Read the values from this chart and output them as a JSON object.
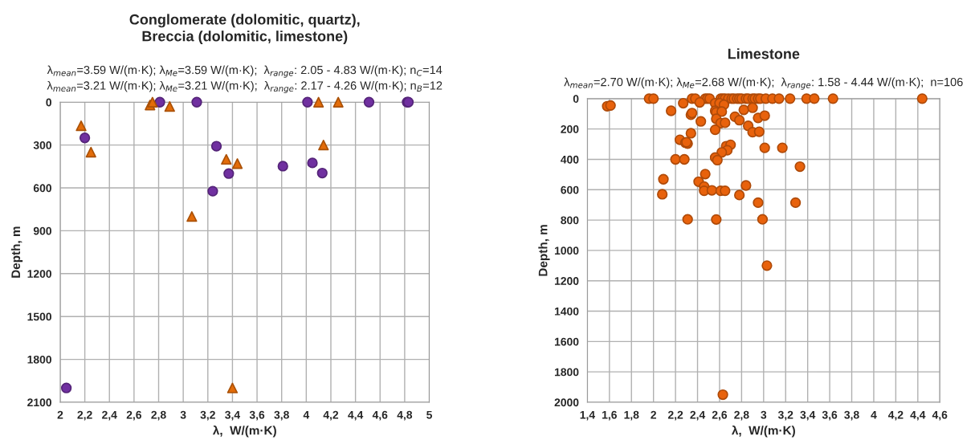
{
  "chart_data": [
    {
      "type": "scatter",
      "title": "Conglomerate (dolomitic, quartz),\nBreccia (dolomitic, limestone)",
      "subtitle": "λ$_{mean}$=3.59 W/(m·K); λ$_{Me}$=3.59 W/(m·K);  λ$_{range}$: 2.05 - 4.83 W/(m·K); n$_{C}$=14\nλ$_{mean}$=3.21 W/(m·K); λ$_{Me}$=3.21 W/(m·K);  λ$_{range}$: 2.17 - 4.26 W/(m·K); n$_{B}$=12",
      "xlabel": "λ,  W/(m·K)",
      "ylabel": "Depth, m",
      "xlim": [
        2,
        5
      ],
      "xticks": [
        2,
        {
          "value": 2.2,
          "label": "2,2"
        },
        {
          "value": 2.4,
          "label": "2,4"
        },
        {
          "value": 2.6,
          "label": "2,6"
        },
        {
          "value": 2.8,
          "label": "2,8"
        },
        3,
        {
          "value": 3.2,
          "label": "3,2"
        },
        {
          "value": 3.4,
          "label": "3,4"
        },
        {
          "value": 3.6,
          "label": "3,6"
        },
        {
          "value": 3.8,
          "label": "3,8"
        },
        4,
        {
          "value": 4.2,
          "label": "4,2"
        },
        {
          "value": 4.4,
          "label": "4,4"
        },
        {
          "value": 4.6,
          "label": "4,6"
        },
        {
          "value": 4.8,
          "label": "4,8"
        },
        5
      ],
      "ylim": [
        2100,
        0
      ],
      "yticks": [
        0,
        300,
        600,
        900,
        1200,
        1500,
        1800,
        2100
      ],
      "grid": true,
      "series": [
        {
          "marker": "circle",
          "color": "#7030a0",
          "x": [
            2.2,
            2.81,
            3.11,
            3.27,
            3.37,
            3.24,
            3.81,
            4.01,
            4.05,
            4.13,
            4.51,
            4.82,
            4.83,
            2.05
          ],
          "values": [
            250,
            0,
            0,
            308,
            500,
            623,
            448,
            0,
            425,
            496,
            0,
            0,
            0,
            2000
          ]
        },
        {
          "marker": "triangle",
          "color": "#e36c09",
          "x": [
            2.17,
            2.25,
            2.73,
            2.75,
            2.89,
            3.07,
            3.35,
            3.44,
            4.1,
            4.14,
            4.26,
            3.4
          ],
          "values": [
            165,
            350,
            20,
            0,
            30,
            800,
            400,
            430,
            0,
            300,
            0,
            2000
          ]
        }
      ]
    },
    {
      "type": "scatter",
      "title": "Limestone",
      "subtitle": "λ$_{mean}$=2.70 W/(m·K); λ$_{Me}$=2.68 W/(m·K);  λ$_{range}$: 1.58 - 4.44 W/(m·K);  n=106",
      "xlabel": "λ,  W/(m·K)",
      "ylabel": "Depth, m",
      "xlim": [
        1.4,
        4.6
      ],
      "xticks": [
        {
          "value": 1.4,
          "label": "1,4"
        },
        {
          "value": 1.6,
          "label": "1,6"
        },
        {
          "value": 1.8,
          "label": "1,8"
        },
        2,
        {
          "value": 2.2,
          "label": "2,2"
        },
        {
          "value": 2.4,
          "label": "2,4"
        },
        {
          "value": 2.6,
          "label": "2,6"
        },
        {
          "value": 2.8,
          "label": "2,8"
        },
        3,
        {
          "value": 3.2,
          "label": "3,2"
        },
        {
          "value": 3.4,
          "label": "3,4"
        },
        {
          "value": 3.6,
          "label": "3,6"
        },
        {
          "value": 3.8,
          "label": "3,8"
        },
        4,
        {
          "value": 4.2,
          "label": "4,2"
        },
        {
          "value": 4.4,
          "label": "4,4"
        },
        {
          "value": 4.6,
          "label": "4,6"
        }
      ],
      "ylim": [
        2000,
        0
      ],
      "yticks": [
        0,
        200,
        400,
        600,
        800,
        1000,
        1200,
        1400,
        1600,
        1800,
        2000
      ],
      "grid": true,
      "series": [
        {
          "marker": "circle",
          "color": "#e8620c",
          "x": [
            1.96,
            2.0,
            2.35,
            2.38,
            2.47,
            2.49,
            2.51,
            2.61,
            2.63,
            2.65,
            2.68,
            2.71,
            2.73,
            2.76,
            2.78,
            2.8,
            2.84,
            2.86,
            2.9,
            2.92,
            2.95,
            2.97,
            3.02,
            3.08,
            3.14,
            3.24,
            3.39,
            3.46,
            3.63,
            4.44,
            1.58,
            1.61,
            2.16,
            2.27,
            2.42,
            2.56,
            2.6,
            2.64,
            2.56,
            2.57,
            2.62,
            2.34,
            2.35,
            2.43,
            2.57,
            2.61,
            2.65,
            2.56,
            2.74,
            2.78,
            2.82,
            2.9,
            2.86,
            2.95,
            3.01,
            2.9,
            2.96,
            2.34,
            2.24,
            2.29,
            2.31,
            2.3,
            2.66,
            2.7,
            2.67,
            2.62,
            3.01,
            3.17,
            2.2,
            2.28,
            2.56,
            2.58,
            3.33,
            2.09,
            2.47,
            2.41,
            2.46,
            2.46,
            2.53,
            2.61,
            2.65,
            2.78,
            2.84,
            2.08,
            2.95,
            3.29,
            2.31,
            2.57,
            2.99,
            3.03,
            2.63
          ],
          "values": [
            0,
            0,
            0,
            0,
            0,
            0,
            0,
            0,
            0,
            0,
            0,
            0,
            0,
            0,
            0,
            0,
            0,
            0,
            0,
            0,
            0,
            0,
            0,
            0,
            0,
            0,
            0,
            0,
            0,
            0,
            50,
            45,
            80,
            30,
            25,
            30,
            30,
            40,
            80,
            90,
            85,
            106,
            95,
            150,
            133,
            161,
            159,
            205,
            119,
            142,
            74,
            60,
            179,
            127,
            112,
            221,
            218,
            228,
            271,
            290,
            296,
            287,
            313,
            304,
            340,
            354,
            324,
            324,
            400,
            400,
            388,
            405,
            448,
            531,
            497,
            547,
            579,
            607,
            604,
            607,
            607,
            635,
            572,
            630,
            685,
            685,
            795,
            796,
            795,
            1100,
            1950
          ]
        }
      ]
    }
  ]
}
